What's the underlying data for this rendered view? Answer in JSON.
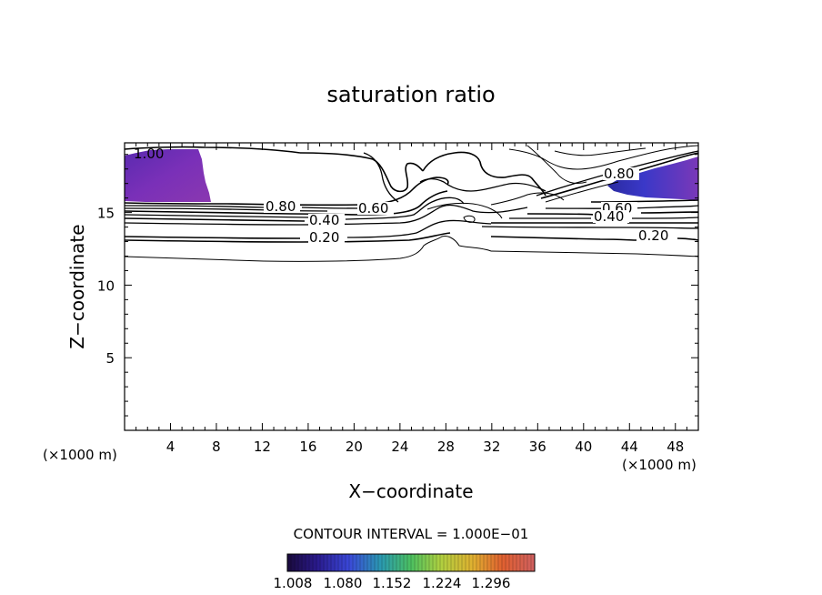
{
  "chart_data": {
    "type": "contour",
    "title": "saturation ratio",
    "xlabel": "X−coordinate",
    "ylabel": "Z−coordinate",
    "x_unit": "(×1000 m)",
    "xlim": [
      0,
      50
    ],
    "ylim": [
      0,
      19.8
    ],
    "x_ticks": [
      "4",
      "8",
      "12",
      "16",
      "20",
      "24",
      "28",
      "32",
      "36",
      "40",
      "44",
      "48"
    ],
    "y_ticks": [
      "5",
      "10",
      "15"
    ],
    "contour_interval_text": "CONTOUR INTERVAL = 1.000E−01",
    "contour_labels": [
      {
        "text": "1.00",
        "x": 2.5,
        "z": 19.0
      },
      {
        "text": "0.80",
        "x": 13.8,
        "z": 15.6
      },
      {
        "text": "0.40",
        "x": 17.8,
        "z": 14.7
      },
      {
        "text": "0.20",
        "x": 17.8,
        "z": 13.3
      },
      {
        "text": "0.60",
        "x": 22.0,
        "z": 15.4
      },
      {
        "text": "0.80",
        "x": 41.8,
        "z": 17.7
      },
      {
        "text": "0.60",
        "x": 42.8,
        "z": 15.3
      },
      {
        "text": "0.40",
        "x": 42.2,
        "z": 14.8
      },
      {
        "text": "0.20",
        "x": 46.0,
        "z": 13.3
      }
    ],
    "colorbar": {
      "labels": [
        "1.008",
        "1.080",
        "1.152",
        "1.224",
        "1.296"
      ],
      "range": [
        1.008,
        1.332
      ],
      "colors": [
        "#1a0a3c",
        "#2a1a8c",
        "#3a48d8",
        "#2a9ab0",
        "#4cc060",
        "#b0d040",
        "#e0b030",
        "#e06030",
        "#c02020",
        "#d06060"
      ]
    },
    "supersaturated_regions_color": "#6a30b0"
  }
}
